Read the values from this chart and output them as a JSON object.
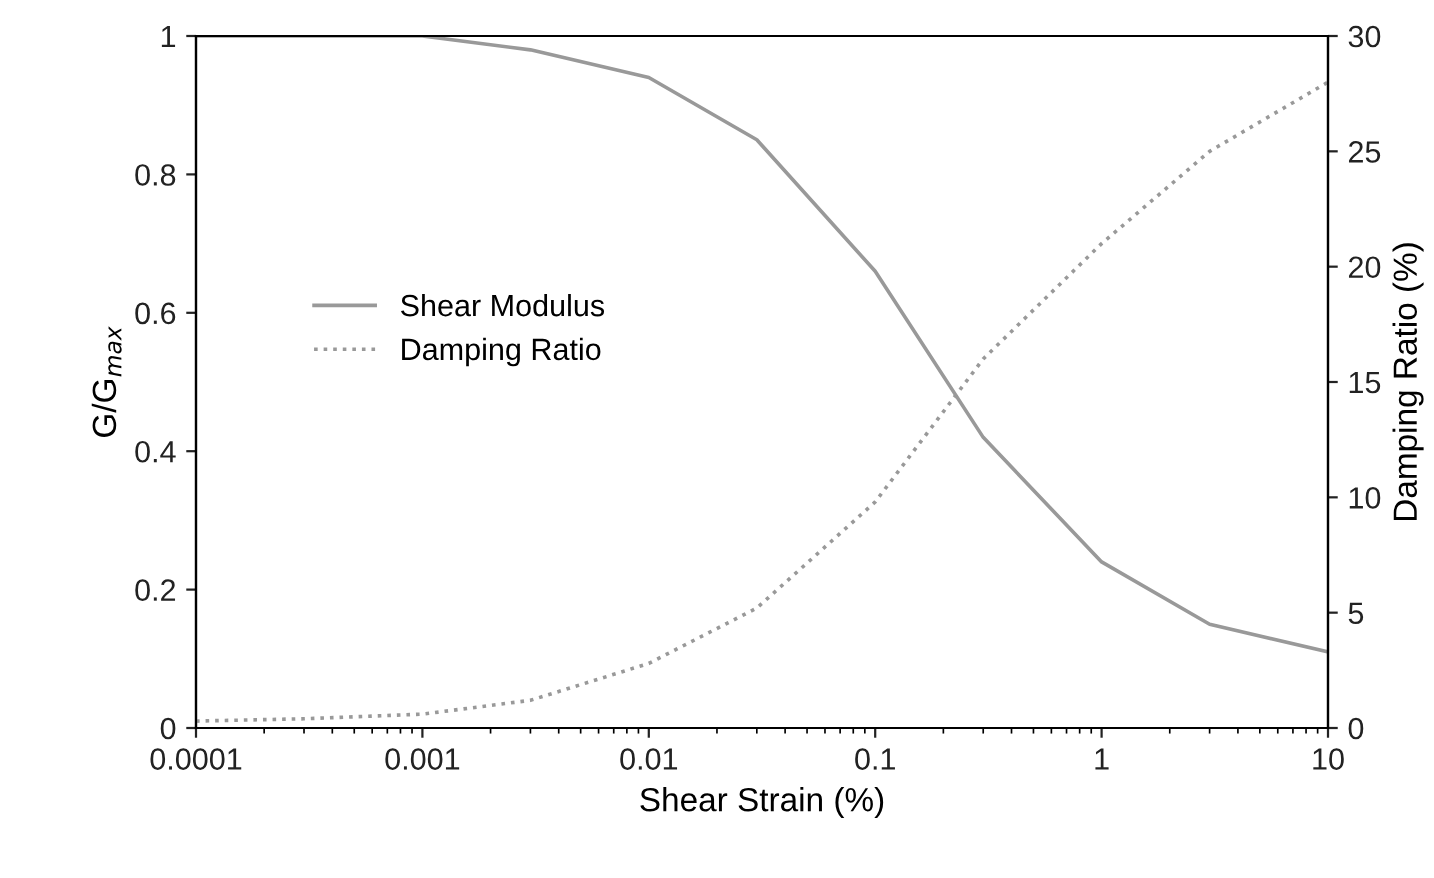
{
  "chart_data": {
    "type": "line",
    "xlabel": "Shear Strain (%)",
    "ylabel": "G/G$_{max}$",
    "y2label": "Damping Ratio (%)",
    "log": "x",
    "xlim": [
      0.0001,
      10
    ],
    "xticks": [
      {
        "value": 0.0001,
        "label": "0.0001"
      },
      {
        "value": 0.001,
        "label": "0.001"
      },
      {
        "value": 0.01,
        "label": "0.01"
      },
      {
        "value": 0.1,
        "label": "0.1"
      },
      1,
      10
    ],
    "ylim": [
      0,
      1
    ],
    "yticks": [
      0,
      0.2,
      0.4,
      0.6,
      0.8,
      1
    ],
    "y2lim": [
      0,
      30
    ],
    "y2ticks": [
      0,
      5,
      10,
      15,
      20,
      25,
      30
    ],
    "grid": false,
    "legend": "center left",
    "x": [
      0.0001,
      0.0003,
      0.001,
      0.003,
      0.01,
      0.03,
      0.1,
      0.3,
      1,
      3,
      10
    ],
    "series": [
      {
        "name": "Shear Modulus",
        "color": "#999999",
        "line_style": "solid",
        "values": [
          1,
          1,
          1,
          0.98,
          0.94,
          0.85,
          0.66,
          0.42,
          0.24,
          0.15,
          0.11
        ]
      },
      {
        "name": "Damping Ratio",
        "color": "#999999",
        "line_style": "dotted",
        "axis": "y2",
        "values": [
          0.3,
          0.4,
          0.6,
          1.2,
          2.8,
          5.2,
          9.8,
          16,
          21,
          25,
          28
        ]
      }
    ]
  }
}
